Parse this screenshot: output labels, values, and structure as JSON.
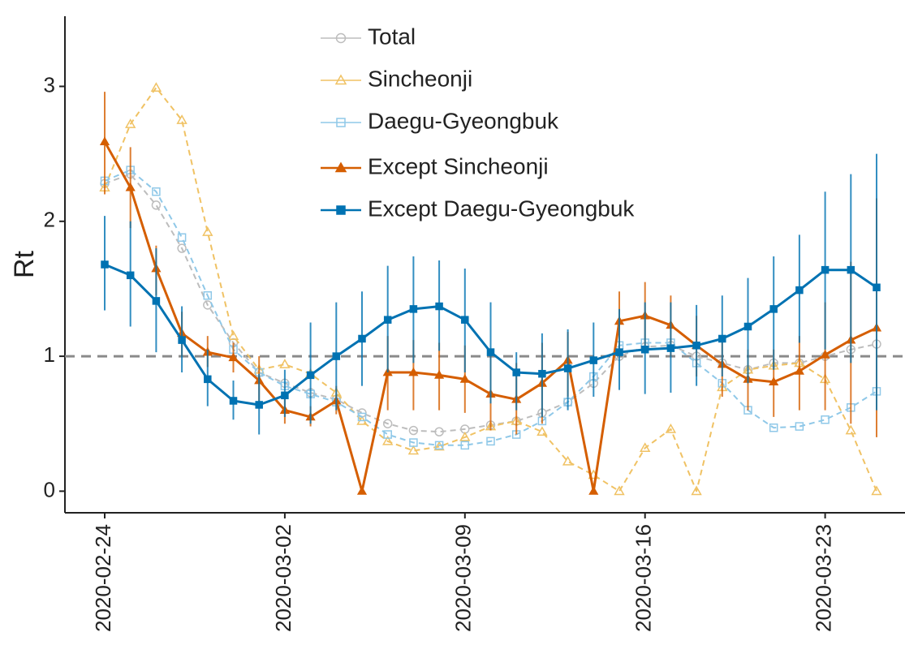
{
  "chart_data": {
    "type": "line",
    "ylabel": "Rt",
    "x": [
      "2020-02-24",
      "2020-02-25",
      "2020-02-26",
      "2020-02-27",
      "2020-02-28",
      "2020-02-29",
      "2020-03-01",
      "2020-03-02",
      "2020-03-03",
      "2020-03-04",
      "2020-03-05",
      "2020-03-06",
      "2020-03-07",
      "2020-03-08",
      "2020-03-09",
      "2020-03-10",
      "2020-03-11",
      "2020-03-12",
      "2020-03-13",
      "2020-03-14",
      "2020-03-15",
      "2020-03-16",
      "2020-03-17",
      "2020-03-18",
      "2020-03-19",
      "2020-03-20",
      "2020-03-21",
      "2020-03-22",
      "2020-03-23",
      "2020-03-24",
      "2020-03-25"
    ],
    "xticks": [
      "2020-02-24",
      "2020-03-02",
      "2020-03-09",
      "2020-03-16",
      "2020-03-23"
    ],
    "ylim": [
      -0.16,
      3.52
    ],
    "yticks": [
      0,
      1,
      2,
      3
    ],
    "hline": 1,
    "legend": "top",
    "series": [
      {
        "name": "Total",
        "color": "#bdbdbd",
        "marker": "circle",
        "filled": false,
        "dashed": true,
        "values": [
          2.28,
          2.35,
          2.12,
          1.8,
          1.38,
          1.1,
          0.88,
          0.8,
          0.73,
          0.68,
          0.58,
          0.5,
          0.45,
          0.44,
          0.46,
          0.49,
          0.52,
          0.58,
          0.66,
          0.8,
          1.0,
          1.07,
          1.08,
          1.0,
          0.95,
          0.9,
          0.95,
          0.95,
          1.0,
          1.05,
          1.09
        ]
      },
      {
        "name": "Sincheonji",
        "color": "#f0c264",
        "marker": "triangle",
        "filled": false,
        "dashed": true,
        "values": [
          2.25,
          2.72,
          2.99,
          2.75,
          1.92,
          1.15,
          0.9,
          0.94,
          0.87,
          0.73,
          0.52,
          0.37,
          0.3,
          0.33,
          0.4,
          0.48,
          0.52,
          0.44,
          0.22,
          0.12,
          0.0,
          0.32,
          0.46,
          0.0,
          0.77,
          0.9,
          0.93,
          0.95,
          0.83,
          0.45,
          0.0
        ]
      },
      {
        "name": "Daegu-Gyeongbuk",
        "color": "#8fc8e8",
        "marker": "square",
        "filled": false,
        "dashed": true,
        "values": [
          2.3,
          2.38,
          2.22,
          1.88,
          1.45,
          1.05,
          0.88,
          0.78,
          0.72,
          0.66,
          0.55,
          0.42,
          0.36,
          0.34,
          0.34,
          0.37,
          0.42,
          0.52,
          0.66,
          0.85,
          1.08,
          1.1,
          1.1,
          0.95,
          0.8,
          0.6,
          0.47,
          0.48,
          0.53,
          0.62,
          0.74
        ]
      },
      {
        "name": "Except Sincheonji",
        "color": "#d55e00",
        "marker": "triangle",
        "filled": true,
        "dashed": false,
        "values": [
          2.59,
          2.25,
          1.65,
          1.17,
          1.03,
          0.99,
          0.82,
          0.6,
          0.55,
          0.67,
          0.0,
          0.88,
          0.88,
          0.86,
          0.83,
          0.72,
          0.68,
          0.8,
          0.97,
          0.0,
          1.26,
          1.3,
          1.23,
          1.08,
          0.94,
          0.83,
          0.81,
          0.89,
          1.01,
          1.12,
          1.21
        ],
        "lower": [
          2.2,
          1.95,
          1.45,
          1.0,
          0.92,
          0.88,
          0.65,
          0.5,
          0.48,
          0.57,
          null,
          0.6,
          0.6,
          0.6,
          0.58,
          0.45,
          0.42,
          0.5,
          0.7,
          null,
          1.0,
          1.05,
          1.0,
          0.85,
          0.7,
          0.6,
          0.55,
          0.6,
          0.6,
          0.5,
          0.4
        ],
        "upper": [
          2.96,
          2.55,
          1.82,
          1.33,
          1.15,
          1.1,
          1.0,
          0.7,
          0.63,
          0.78,
          null,
          1.15,
          1.12,
          1.1,
          1.08,
          1.0,
          0.95,
          1.1,
          1.18,
          null,
          1.48,
          1.55,
          1.45,
          1.3,
          1.15,
          1.05,
          1.05,
          1.15,
          1.4,
          1.7,
          2.17
        ]
      },
      {
        "name": "Except Daegu-Gyeongbuk",
        "color": "#0072b2",
        "marker": "square",
        "filled": true,
        "dashed": false,
        "values": [
          1.68,
          1.6,
          1.41,
          1.12,
          0.83,
          0.67,
          0.64,
          0.71,
          0.86,
          1.0,
          1.13,
          1.27,
          1.35,
          1.37,
          1.27,
          1.03,
          0.88,
          0.87,
          0.91,
          0.97,
          1.03,
          1.05,
          1.06,
          1.08,
          1.13,
          1.22,
          1.35,
          1.49,
          1.64,
          1.64,
          1.51
        ],
        "lower": [
          1.34,
          1.22,
          1.03,
          0.88,
          0.63,
          0.53,
          0.42,
          0.55,
          0.5,
          0.6,
          0.78,
          0.88,
          0.95,
          1.04,
          0.88,
          0.65,
          0.6,
          0.55,
          0.6,
          0.7,
          0.75,
          0.72,
          0.73,
          0.78,
          0.85,
          0.8,
          0.9,
          1.1,
          1.05,
          0.95,
          0.6
        ],
        "upper": [
          2.04,
          2.0,
          1.8,
          1.37,
          1.05,
          0.82,
          0.87,
          0.9,
          1.25,
          1.4,
          1.48,
          1.67,
          1.74,
          1.71,
          1.65,
          1.4,
          1.03,
          1.17,
          1.2,
          1.25,
          1.35,
          1.4,
          1.4,
          1.38,
          1.45,
          1.58,
          1.74,
          1.9,
          2.22,
          2.35,
          2.5
        ]
      }
    ]
  }
}
